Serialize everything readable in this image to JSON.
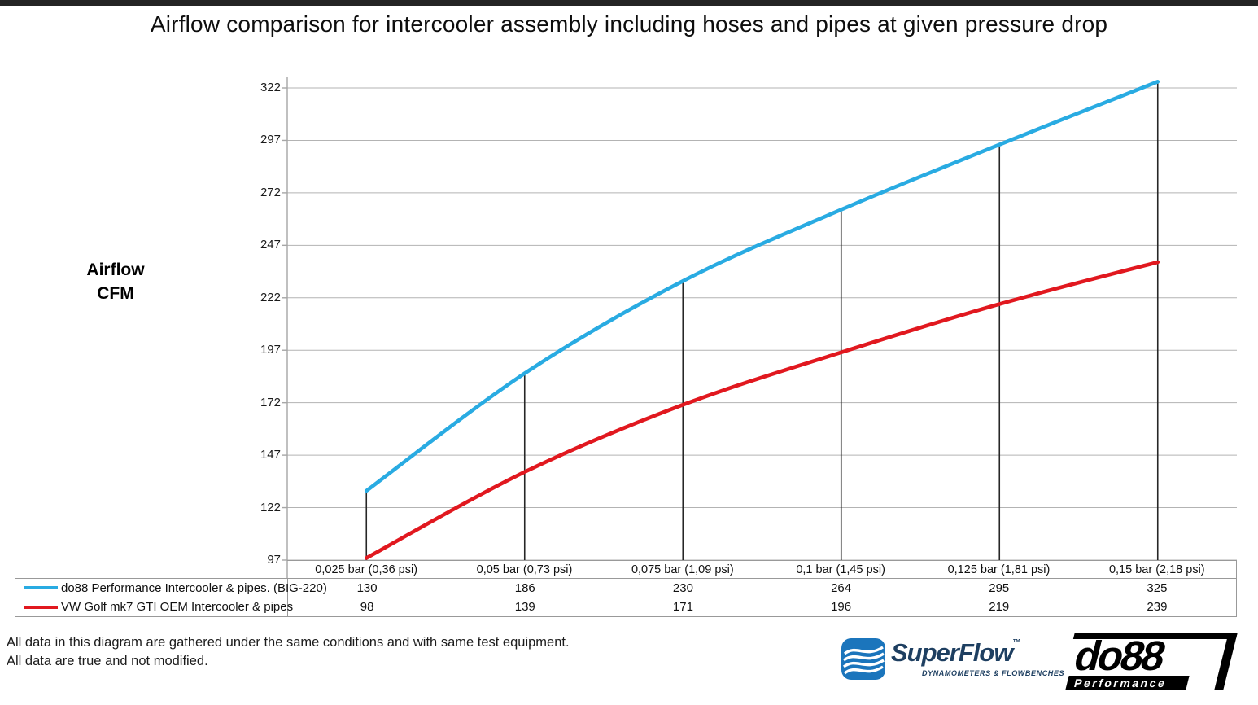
{
  "title": "Airflow comparison for intercooler assembly including hoses and pipes at given pressure drop",
  "y_axis_label": {
    "line1": "Airflow",
    "line2": "CFM"
  },
  "chart_data": {
    "type": "line",
    "title": "Airflow comparison for intercooler assembly including hoses and pipes at given pressure drop",
    "xlabel": "",
    "ylabel": "Airflow CFM",
    "ylim": [
      97,
      322
    ],
    "y_ticks": [
      322,
      297,
      272,
      247,
      222,
      197,
      172,
      147,
      122,
      97
    ],
    "grid": true,
    "legend_position": "table-left",
    "drop_lines": true,
    "categories": [
      "0,025 bar (0,36 psi)",
      "0,05 bar (0,73 psi)",
      "0,075 bar (1,09 psi)",
      "0,1 bar (1,45 psi)",
      "0,125 bar (1,81 psi)",
      "0,15 bar (2,18 psi)"
    ],
    "series": [
      {
        "name": "do88 Performance Intercooler & pipes. (BIG-220)",
        "color": "#29ABE2",
        "values": [
          130,
          186,
          230,
          264,
          295,
          325
        ]
      },
      {
        "name": "VW Golf mk7 GTI OEM Intercooler & pipes",
        "color": "#E1181F",
        "values": [
          98,
          139,
          171,
          196,
          219,
          239
        ]
      }
    ]
  },
  "footer": {
    "line1": "All data in this diagram are gathered under the same conditions and with same test equipment.",
    "line2": "All data are true and not modified."
  },
  "logos": {
    "superflow": {
      "name": "SuperFlow",
      "trademark": "™",
      "tagline": "DYNAMOMETERS & FLOWBENCHES",
      "brand_color": "#1e3f61",
      "icon_color": "#1b75bc"
    },
    "do88": {
      "name": "do88",
      "tagline": "Performance"
    }
  },
  "style_colors": {
    "grid": "#b3b3b3",
    "axis": "#a6a6a6",
    "table_border": "#999999",
    "drop_line": "#262626",
    "top_strip": "#242424"
  }
}
